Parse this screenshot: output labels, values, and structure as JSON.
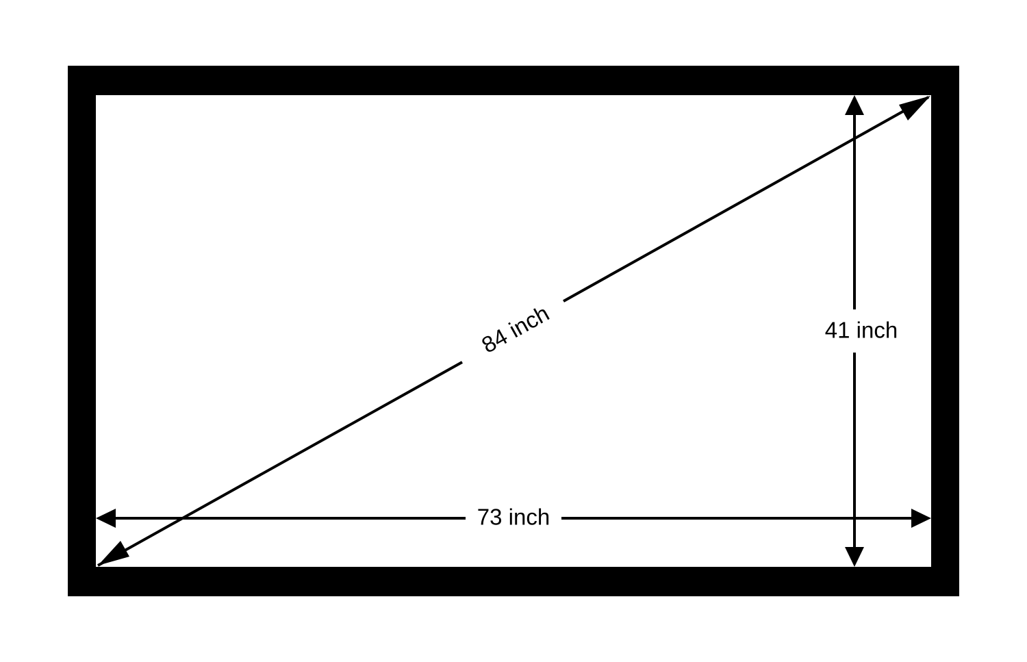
{
  "colors": {
    "frame": "#000000",
    "screen": "#ffffff",
    "lines": "#000000"
  },
  "dimensions": {
    "diagonal_label": "84 inch",
    "height_label": "41 inch",
    "width_label": "73 inch"
  }
}
